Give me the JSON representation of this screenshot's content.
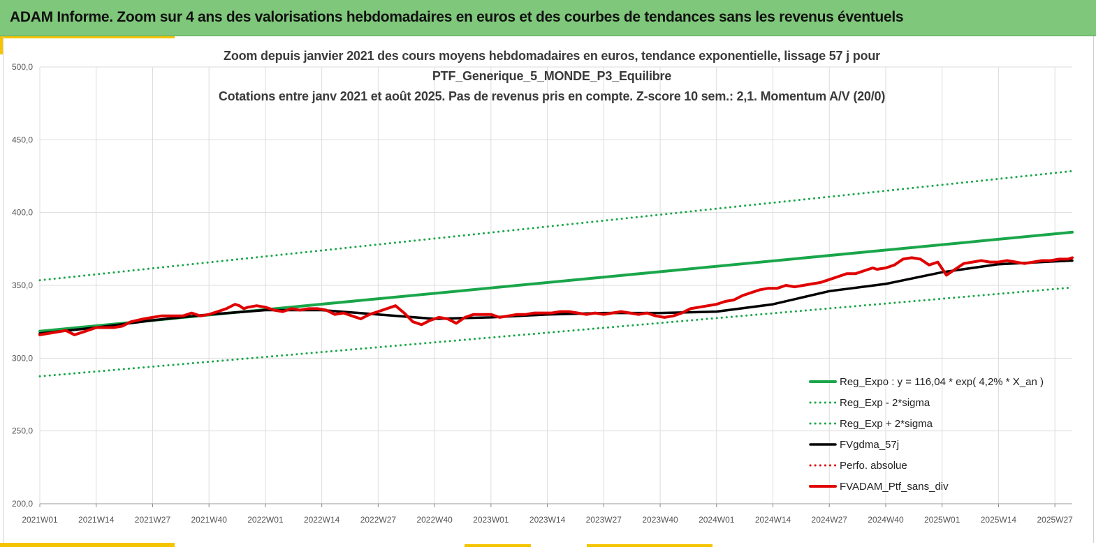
{
  "header": {
    "title": "ADAM Informe. Zoom sur 4 ans des valorisations hebdomadaires en euros et des courbes de tendances sans les revenus éventuels"
  },
  "colors": {
    "banner": "#7fc77a",
    "accent": "#f5c400",
    "reg_expo": "#1aa64a",
    "sigma": "#1aa64a",
    "fvgdma": "#000000",
    "perfo": "#e00000",
    "fvadam": "#e00000",
    "grid": "#dddddd"
  },
  "chart_data": {
    "type": "line",
    "title_lines": [
      "Zoom depuis janvier 2021 des cours moyens hebdomadaires  en euros, tendance exponentielle, lissage 57 j pour",
      "PTF_Generique_5_MONDE_P3_Equilibre",
      "Cotations  entre janv 2021 et août 2025. Pas de revenus pris en compte. Z-score 10 sem.: 2,1. Momentum A/V (20/0)"
    ],
    "ylim": [
      200,
      500
    ],
    "y_ticks": [
      "200,0",
      "250,0",
      "300,0",
      "350,0",
      "400,0",
      "450,0",
      "500,0"
    ],
    "x_ticks": [
      "2021W01",
      "2021W14",
      "2021W27",
      "2021W40",
      "2022W01",
      "2022W14",
      "2022W27",
      "2022W40",
      "2023W01",
      "2023W14",
      "2023W27",
      "2023W40",
      "2024W01",
      "2024W14",
      "2024W27",
      "2024W40",
      "2025W01",
      "2025W14",
      "2025W27"
    ],
    "x_range_weeks": [
      0,
      238
    ],
    "grid": true,
    "legend_position": "bottom-right",
    "series": [
      {
        "name": "Reg_Expo : y = 116,04 * exp( 4,2% *  X_an )",
        "style": "solid-thick",
        "x": [
          0,
          238
        ],
        "y": [
          318.5,
          386.5
        ]
      },
      {
        "name": "Reg_Exp - 2*sigma",
        "style": "dotted",
        "x": [
          0,
          238
        ],
        "y": [
          287.5,
          348.5
        ]
      },
      {
        "name": "Reg_Exp + 2*sigma",
        "style": "dotted",
        "x": [
          0,
          238
        ],
        "y": [
          353.5,
          428.5
        ]
      },
      {
        "name": "FVgdma_57j",
        "style": "solid",
        "x": [
          0,
          13,
          26,
          39,
          52,
          65,
          78,
          91,
          104,
          117,
          130,
          143,
          156,
          169,
          182,
          195,
          208,
          221,
          234,
          238
        ],
        "y": [
          317,
          321,
          326,
          330,
          333,
          333,
          330,
          327,
          328,
          330,
          331,
          331,
          332,
          337,
          346,
          351,
          359,
          364.5,
          366.5,
          367
        ]
      },
      {
        "name": "Perfo. absolue",
        "style": "dotted",
        "x": [],
        "y": []
      },
      {
        "name": "FVADAM_Ptf_sans_div",
        "style": "solid-thick",
        "x": [
          0,
          4,
          6,
          8,
          10,
          13,
          17,
          19,
          21,
          24,
          26,
          28,
          30,
          33,
          35,
          37,
          39,
          41,
          43,
          45,
          46,
          47,
          48,
          50,
          52,
          54,
          56,
          58,
          60,
          62,
          64,
          66,
          68,
          70,
          72,
          74,
          76,
          78,
          80,
          82,
          84,
          85,
          86,
          88,
          90,
          92,
          94,
          96,
          98,
          100,
          102,
          104,
          106,
          108,
          110,
          112,
          114,
          116,
          118,
          120,
          122,
          124,
          126,
          128,
          130,
          132,
          134,
          136,
          138,
          140,
          142,
          144,
          146,
          148,
          150,
          152,
          154,
          156,
          158,
          160,
          162,
          164,
          166,
          168,
          170,
          172,
          174,
          176,
          178,
          180,
          182,
          184,
          186,
          188,
          190,
          192,
          193,
          195,
          197,
          199,
          201,
          203,
          205,
          207,
          209,
          211,
          213,
          215,
          217,
          219,
          221,
          223,
          225,
          227,
          229,
          231,
          233,
          235,
          237,
          238
        ],
        "y": [
          316,
          318,
          319,
          316,
          318,
          321,
          321,
          322,
          325,
          327,
          328,
          329,
          329,
          329,
          331,
          329,
          330,
          332,
          334,
          337,
          336,
          334,
          335,
          336,
          335,
          333,
          332,
          334,
          333,
          334,
          334,
          333,
          330,
          331,
          329,
          327,
          330,
          332,
          334,
          336,
          331,
          328,
          325,
          323,
          326,
          328,
          327,
          324,
          328,
          330,
          330,
          330,
          328,
          329,
          330,
          330,
          331,
          331,
          331,
          332,
          332,
          331,
          330,
          331,
          330,
          331,
          332,
          331,
          330,
          331,
          329,
          328,
          329,
          331,
          334,
          335,
          336,
          337,
          339,
          340,
          343,
          345,
          347,
          348,
          348,
          350,
          349,
          350,
          351,
          352,
          354,
          356,
          358,
          358,
          360,
          362,
          361,
          362,
          364,
          368,
          369,
          368,
          364,
          366,
          357,
          361,
          365,
          366,
          367,
          366,
          366,
          367,
          366,
          365,
          366,
          367,
          367,
          368,
          368,
          369
        ]
      }
    ]
  }
}
